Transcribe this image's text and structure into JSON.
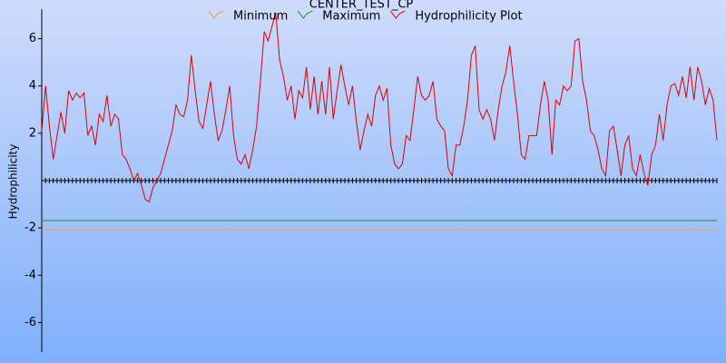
{
  "chart_data": {
    "type": "line",
    "title": "CENTER_TEST_CP",
    "y_label": "Hydrophilicity",
    "ylim": [
      -7.25,
      7.25
    ],
    "yticks": [
      6,
      4,
      2,
      -2,
      -4,
      -6
    ],
    "thresholds": [
      {
        "name": "Minimum",
        "color": "#f0a030",
        "value": -2.07
      },
      {
        "name": "Maximum",
        "color": "#209020",
        "value": -1.69
      }
    ],
    "series": [
      {
        "name": "Hydrophilicity Plot",
        "color": "#e00000",
        "values": [
          2.1,
          4.0,
          2.3,
          0.9,
          1.9,
          2.9,
          2.0,
          3.8,
          3.4,
          3.7,
          3.5,
          3.7,
          1.9,
          2.3,
          1.5,
          2.8,
          2.5,
          3.6,
          2.3,
          2.8,
          2.6,
          1.1,
          0.9,
          0.5,
          0.0,
          0.3,
          -0.2,
          -0.8,
          -0.9,
          -0.3,
          0.0,
          0.3,
          0.9,
          1.5,
          2.1,
          3.2,
          2.8,
          2.7,
          3.4,
          5.3,
          3.8,
          2.5,
          2.2,
          3.2,
          4.2,
          2.8,
          1.7,
          2.1,
          3.0,
          4.0,
          1.9,
          0.9,
          0.7,
          1.1,
          0.5,
          1.3,
          2.3,
          4.2,
          6.3,
          5.9,
          6.5,
          7.1,
          5.1,
          4.4,
          3.4,
          4.0,
          2.6,
          3.8,
          3.5,
          4.8,
          3.0,
          4.4,
          2.8,
          4.2,
          2.8,
          4.8,
          2.6,
          3.8,
          4.9,
          4.0,
          3.2,
          4.0,
          2.5,
          1.3,
          2.1,
          2.8,
          2.3,
          3.6,
          4.0,
          3.4,
          3.9,
          1.5,
          0.7,
          0.5,
          0.7,
          1.9,
          1.7,
          3.0,
          4.4,
          3.6,
          3.4,
          3.6,
          4.2,
          2.6,
          2.3,
          2.1,
          0.5,
          0.2,
          1.5,
          1.5,
          2.3,
          3.4,
          5.3,
          5.7,
          3.0,
          2.6,
          3.0,
          2.6,
          1.7,
          3.0,
          4.0,
          4.6,
          5.7,
          4.2,
          2.8,
          1.1,
          0.9,
          1.9,
          1.9,
          1.9,
          3.2,
          4.2,
          3.4,
          1.1,
          3.4,
          3.2,
          4.0,
          3.8,
          4.0,
          5.9,
          6.0,
          4.2,
          3.4,
          2.1,
          1.9,
          1.3,
          0.5,
          0.2,
          2.1,
          2.3,
          1.3,
          0.2,
          1.5,
          1.9,
          0.5,
          0.2,
          1.1,
          0.3,
          -0.2,
          1.1,
          1.5,
          2.8,
          1.7,
          3.2,
          4.0,
          4.1,
          3.6,
          4.4,
          3.5,
          4.8,
          3.4,
          4.8,
          4.2,
          3.2,
          3.9,
          3.4,
          1.7
        ]
      }
    ]
  }
}
